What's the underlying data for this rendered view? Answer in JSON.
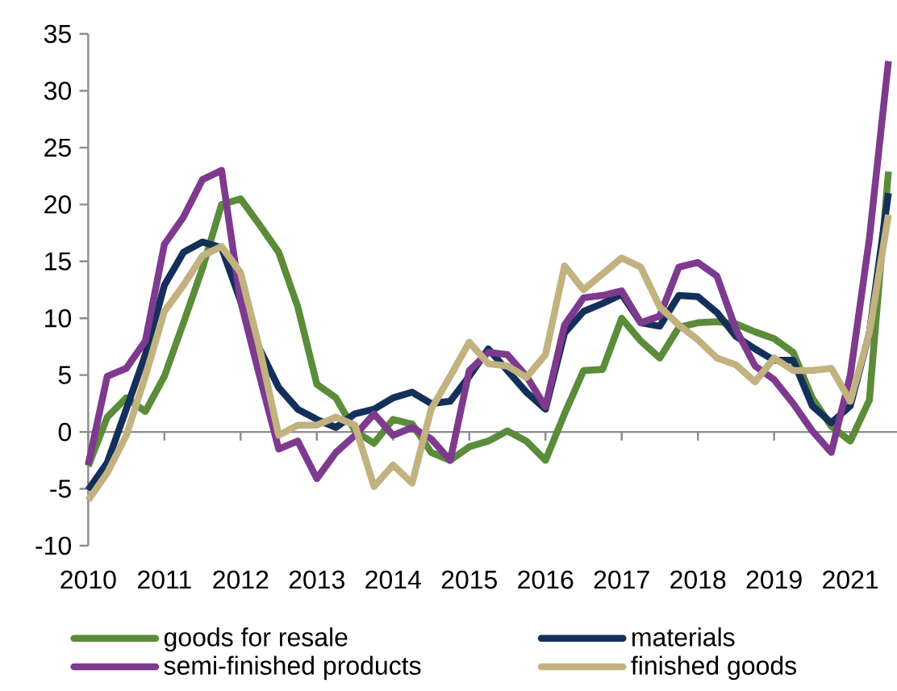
{
  "chart_data": {
    "type": "line",
    "categories": [
      "2010",
      null,
      null,
      null,
      "2011",
      null,
      null,
      null,
      "2012",
      null,
      null,
      null,
      "2013",
      null,
      null,
      null,
      "2014",
      null,
      null,
      null,
      "2015",
      null,
      null,
      null,
      "2016",
      null,
      null,
      null,
      "2017",
      null,
      null,
      null,
      "2018",
      null,
      null,
      null,
      "2019",
      null,
      null,
      null,
      "2021",
      null,
      null
    ],
    "ylim": [
      -10,
      35
    ],
    "yticks": [
      -10,
      -5,
      0,
      5,
      10,
      15,
      20,
      25,
      30,
      35
    ],
    "grid": false,
    "legend": "bottom",
    "marker": "none",
    "line_style": "solid",
    "ref_lines": [
      {
        "axis": "y",
        "value": 0,
        "color": "#8c8c8c"
      }
    ],
    "series": [
      {
        "name": "goods for resale",
        "color": "#5b8c3a",
        "values": [
          -3,
          1.3,
          3,
          1.8,
          4.9,
          9.6,
          14.4,
          20,
          20.5,
          18.2,
          15.8,
          11,
          4.2,
          3,
          0.1,
          -1,
          1.1,
          0.7,
          -1.8,
          -2.5,
          -1.3,
          -0.8,
          0.1,
          -0.8,
          -2.5,
          1.6,
          5.4,
          5.5,
          10,
          8,
          6.5,
          9.2,
          9.6,
          9.7,
          9.5,
          8.8,
          8.2,
          7,
          3,
          0.5,
          -0.8,
          2.8,
          22.9
        ]
      },
      {
        "name": "materials",
        "color": "#14305a",
        "values": [
          -5.1,
          -2.7,
          2,
          6.8,
          12.9,
          15.8,
          16.7,
          16.2,
          11.5,
          7.3,
          3.9,
          2,
          1.1,
          0.4,
          1.6,
          2,
          3,
          3.5,
          2.5,
          2.7,
          4.9,
          7.3,
          5.4,
          3.5,
          2,
          8.7,
          10.6,
          11.3,
          12.1,
          9.6,
          9.3,
          12,
          11.9,
          10.5,
          8.4,
          7.3,
          6.3,
          6.3,
          2.3,
          0.8,
          2.3,
          8.7,
          21
        ]
      },
      {
        "name": "semi-finished products",
        "color": "#7e3a8f",
        "values": [
          -2.9,
          4.9,
          5.6,
          8,
          16.5,
          18.9,
          22.2,
          23,
          11.5,
          4.9,
          -1.5,
          -0.8,
          -4.1,
          -1.8,
          -0.3,
          1.6,
          -0.3,
          0.4,
          -0.6,
          -2.5,
          5.4,
          7,
          6.8,
          4.9,
          2.2,
          9.4,
          11.8,
          12,
          12.4,
          9.6,
          10.2,
          14.5,
          14.9,
          13.7,
          9,
          5.8,
          4.6,
          2.5,
          0.1,
          -1.8,
          5,
          17,
          32.6
        ]
      },
      {
        "name": "finished goods",
        "color": "#c2b280",
        "values": [
          -6,
          -3.6,
          -0.3,
          4.9,
          10.6,
          12.9,
          15.5,
          16.3,
          14,
          7.3,
          -0.3,
          0.6,
          0.6,
          1.3,
          0.6,
          -4.8,
          -2.9,
          -4.5,
          2,
          4.9,
          7.9,
          6,
          5.8,
          4.8,
          6.8,
          14.6,
          12.5,
          13.9,
          15.3,
          14.5,
          11,
          9.4,
          8.1,
          6.5,
          5.9,
          4.4,
          6.5,
          5.4,
          5.4,
          5.6,
          2.7,
          8.7,
          19.1
        ]
      }
    ]
  }
}
